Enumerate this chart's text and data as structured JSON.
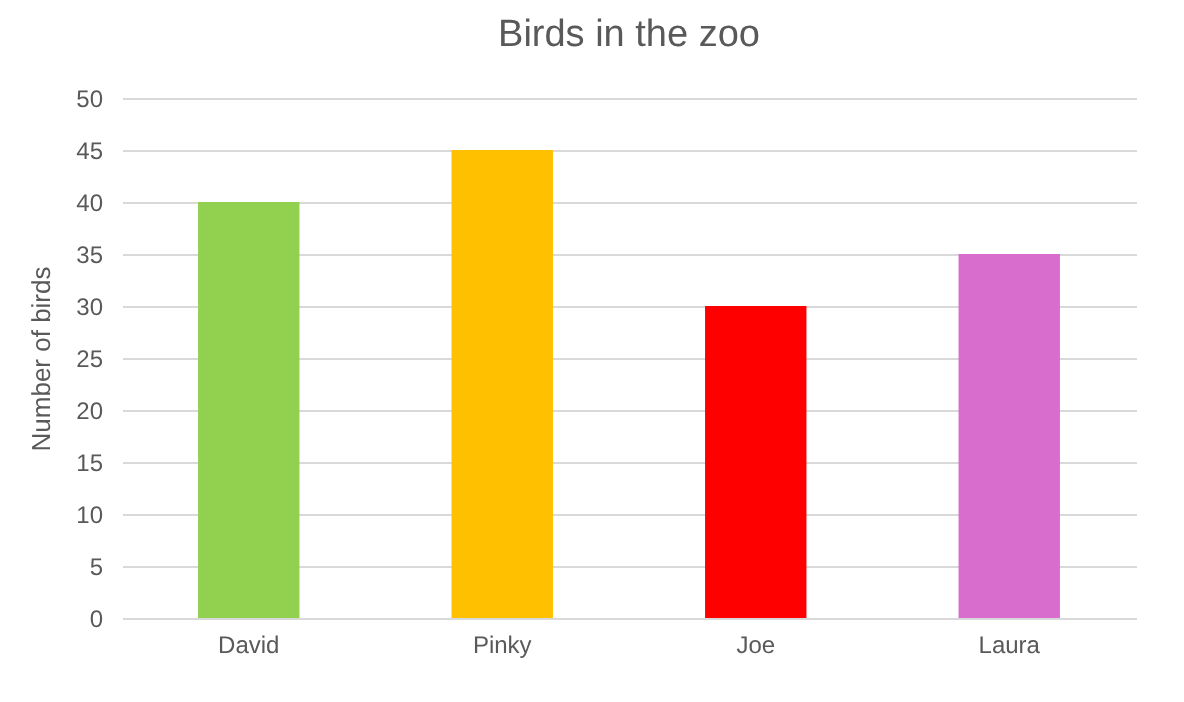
{
  "chart_data": {
    "type": "bar",
    "title": "Birds in the zoo",
    "ylabel": "Number of birds",
    "categories": [
      "David",
      "Pinky",
      "Joe",
      "Laura"
    ],
    "values": [
      40,
      45,
      30,
      35
    ],
    "colors": [
      "#92d050",
      "#ffc000",
      "#ff0000",
      "#d86dcd"
    ],
    "ylim": [
      0,
      50
    ],
    "yticks": [
      0,
      5,
      10,
      15,
      20,
      25,
      30,
      35,
      40,
      45,
      50
    ],
    "grid": "y"
  }
}
